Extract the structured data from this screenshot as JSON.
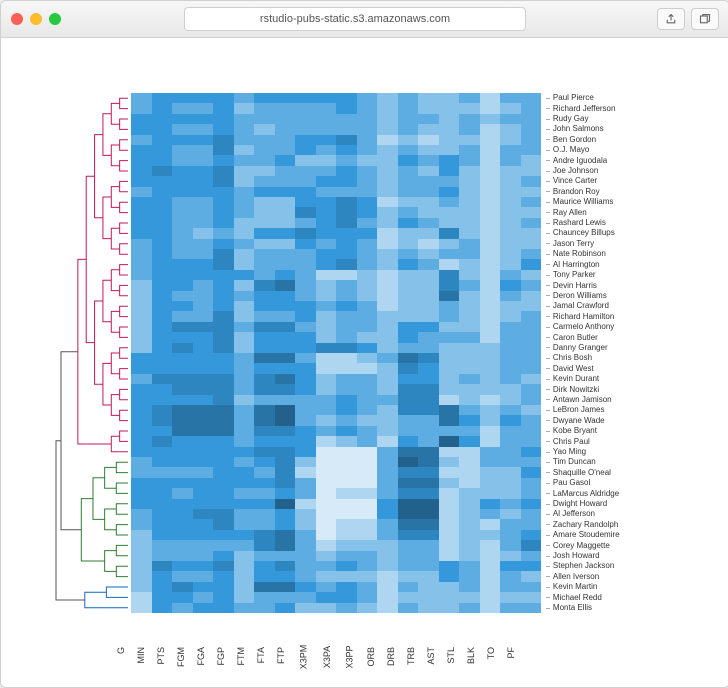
{
  "window": {
    "url": "rstudio-pubs-static.s3.amazonaws.com",
    "traffic_colors": {
      "close": "#ff5f57",
      "min": "#febc2e",
      "max": "#28c840"
    }
  },
  "heatmap": {
    "type": "heatmap",
    "background_color": "#ffffff",
    "row_labels": [
      "Paul Pierce",
      "Richard Jefferson",
      "Rudy Gay",
      "John Salmons",
      "Ben Gordon",
      "O.J. Mayo",
      "Andre Iguodala",
      "Joe Johnson",
      "Vince Carter",
      "Brandon Roy",
      "Maurice Williams",
      "Ray Allen",
      "Rashard Lewis",
      "Chauncey Billups",
      "Jason Terry",
      "Nate Robinson",
      "Al Harrington",
      "Tony Parker",
      "Devin Harris",
      "Deron Williams",
      "Jamal Crawford",
      "Richard Hamilton",
      "Carmelo Anthony",
      "Caron Butler",
      "Danny Granger",
      "Chris Bosh",
      "David West",
      "Kevin Durant",
      "Dirk Nowitzki",
      "Antawn Jamison",
      "LeBron James",
      "Dwyane Wade",
      "Kobe Bryant",
      "Chris Paul",
      "Yao Ming",
      "Tim Duncan",
      "Shaquille O'neal",
      "Pau Gasol",
      "LaMarcus Aldridge",
      "Dwight Howard",
      "Al Jefferson",
      "Zachary Randolph",
      "Amare Stoudemire",
      "Corey Maggette",
      "Josh Howard",
      "Stephen Jackson",
      "Allen Iverson",
      "Kevin Martin",
      "Michael Redd",
      "Monta Ellis"
    ],
    "col_labels": [
      "G",
      "MIN",
      "PTS",
      "FGM",
      "FGA",
      "FGP",
      "FTM",
      "FTA",
      "FTP",
      "X3PM",
      "X3PA",
      "X3PP",
      "ORB",
      "DRB",
      "TRB",
      "AST",
      "STL",
      "BLK",
      "TO",
      "PF"
    ],
    "color_scale": [
      "#d6eaf8",
      "#aed6f1",
      "#85c1e9",
      "#5dade2",
      "#3498db",
      "#2e86c1",
      "#2874a6",
      "#21618c"
    ],
    "dendrogram_colors": {
      "cluster1": "#c2185b",
      "cluster2": "#2e7d32",
      "cluster3": "#1565c0"
    },
    "row_cluster_split": [
      0,
      35,
      47,
      50
    ],
    "label_fontsize_row": 8,
    "label_fontsize_col": 9,
    "values": [
      [
        3,
        4,
        4,
        4,
        4,
        3,
        4,
        4,
        4,
        4,
        4,
        3,
        2,
        3,
        2,
        2,
        3,
        1,
        3,
        3
      ],
      [
        3,
        4,
        3,
        3,
        4,
        2,
        3,
        3,
        3,
        3,
        4,
        3,
        2,
        3,
        2,
        2,
        2,
        1,
        2,
        3
      ],
      [
        4,
        4,
        4,
        4,
        4,
        3,
        3,
        3,
        3,
        3,
        3,
        3,
        2,
        3,
        3,
        2,
        3,
        2,
        3,
        3
      ],
      [
        4,
        4,
        3,
        3,
        4,
        3,
        2,
        3,
        3,
        3,
        3,
        3,
        2,
        3,
        2,
        2,
        3,
        1,
        2,
        3
      ],
      [
        3,
        4,
        4,
        4,
        5,
        3,
        3,
        3,
        4,
        4,
        5,
        3,
        1,
        2,
        1,
        2,
        2,
        1,
        2,
        3
      ],
      [
        4,
        4,
        3,
        3,
        5,
        2,
        3,
        3,
        4,
        3,
        4,
        3,
        2,
        3,
        2,
        2,
        3,
        1,
        3,
        3
      ],
      [
        4,
        4,
        3,
        3,
        4,
        3,
        3,
        4,
        2,
        2,
        3,
        2,
        2,
        4,
        3,
        4,
        3,
        1,
        3,
        2
      ],
      [
        4,
        5,
        4,
        4,
        5,
        2,
        2,
        3,
        3,
        3,
        4,
        3,
        2,
        3,
        2,
        4,
        2,
        1,
        2,
        2
      ],
      [
        4,
        4,
        4,
        4,
        5,
        2,
        3,
        3,
        3,
        4,
        4,
        3,
        2,
        3,
        3,
        3,
        2,
        1,
        2,
        3
      ],
      [
        3,
        4,
        4,
        4,
        4,
        3,
        4,
        4,
        4,
        3,
        3,
        3,
        2,
        3,
        3,
        4,
        2,
        1,
        2,
        2
      ],
      [
        4,
        4,
        3,
        3,
        4,
        3,
        2,
        2,
        4,
        4,
        5,
        4,
        1,
        2,
        2,
        3,
        2,
        1,
        2,
        3
      ],
      [
        4,
        4,
        3,
        3,
        4,
        3,
        2,
        2,
        5,
        4,
        5,
        4,
        2,
        3,
        2,
        2,
        2,
        1,
        2,
        2
      ],
      [
        4,
        4,
        3,
        3,
        4,
        2,
        2,
        2,
        3,
        4,
        5,
        3,
        2,
        4,
        3,
        2,
        2,
        1,
        2,
        3
      ],
      [
        4,
        4,
        3,
        2,
        3,
        2,
        4,
        4,
        5,
        4,
        4,
        4,
        1,
        2,
        2,
        5,
        2,
        1,
        2,
        2
      ],
      [
        3,
        4,
        3,
        3,
        4,
        3,
        2,
        2,
        4,
        3,
        4,
        3,
        1,
        2,
        1,
        2,
        3,
        1,
        2,
        2
      ],
      [
        3,
        4,
        3,
        3,
        5,
        2,
        3,
        3,
        3,
        4,
        4,
        3,
        2,
        3,
        2,
        3,
        3,
        1,
        2,
        3
      ],
      [
        3,
        4,
        4,
        4,
        5,
        2,
        3,
        3,
        3,
        4,
        5,
        3,
        2,
        4,
        3,
        1,
        2,
        1,
        2,
        4
      ],
      [
        3,
        4,
        4,
        4,
        4,
        4,
        3,
        4,
        3,
        1,
        1,
        2,
        1,
        2,
        2,
        5,
        2,
        1,
        3,
        2
      ],
      [
        2,
        4,
        4,
        3,
        4,
        2,
        5,
        6,
        3,
        2,
        3,
        2,
        1,
        2,
        2,
        5,
        3,
        1,
        4,
        3
      ],
      [
        2,
        4,
        3,
        3,
        4,
        3,
        4,
        4,
        3,
        2,
        3,
        2,
        1,
        2,
        2,
        6,
        2,
        1,
        3,
        2
      ],
      [
        2,
        4,
        4,
        3,
        4,
        2,
        4,
        4,
        4,
        3,
        4,
        3,
        1,
        2,
        2,
        3,
        2,
        1,
        2,
        2
      ],
      [
        2,
        4,
        3,
        3,
        5,
        2,
        3,
        3,
        4,
        2,
        3,
        3,
        2,
        2,
        2,
        3,
        2,
        1,
        2,
        3
      ],
      [
        2,
        4,
        5,
        5,
        5,
        3,
        5,
        5,
        3,
        2,
        3,
        3,
        2,
        4,
        4,
        2,
        2,
        1,
        3,
        3
      ],
      [
        2,
        4,
        4,
        4,
        5,
        2,
        4,
        4,
        4,
        2,
        3,
        2,
        2,
        4,
        3,
        3,
        3,
        1,
        3,
        3
      ],
      [
        2,
        4,
        5,
        4,
        5,
        2,
        4,
        4,
        4,
        5,
        5,
        4,
        2,
        3,
        3,
        2,
        2,
        2,
        3,
        3
      ],
      [
        4,
        4,
        4,
        4,
        4,
        3,
        6,
        6,
        3,
        1,
        1,
        2,
        3,
        6,
        5,
        2,
        2,
        2,
        3,
        3
      ],
      [
        4,
        4,
        4,
        4,
        4,
        3,
        4,
        4,
        4,
        1,
        1,
        1,
        2,
        5,
        4,
        2,
        2,
        2,
        3,
        3
      ],
      [
        3,
        5,
        5,
        5,
        5,
        3,
        5,
        6,
        4,
        2,
        3,
        3,
        2,
        4,
        4,
        2,
        3,
        2,
        3,
        2
      ],
      [
        4,
        4,
        5,
        5,
        5,
        3,
        5,
        5,
        4,
        2,
        3,
        3,
        2,
        5,
        5,
        2,
        2,
        2,
        2,
        3
      ],
      [
        4,
        4,
        4,
        4,
        5,
        2,
        3,
        3,
        3,
        3,
        4,
        3,
        3,
        5,
        5,
        1,
        2,
        1,
        2,
        3
      ],
      [
        4,
        5,
        6,
        6,
        6,
        3,
        6,
        7,
        3,
        3,
        4,
        3,
        2,
        5,
        5,
        6,
        3,
        2,
        3,
        2
      ],
      [
        4,
        5,
        6,
        6,
        6,
        3,
        6,
        7,
        3,
        2,
        3,
        2,
        2,
        3,
        3,
        6,
        4,
        2,
        4,
        3
      ],
      [
        4,
        4,
        6,
        6,
        6,
        3,
        5,
        5,
        4,
        3,
        4,
        3,
        2,
        3,
        3,
        3,
        3,
        1,
        3,
        3
      ],
      [
        4,
        5,
        4,
        4,
        4,
        3,
        4,
        4,
        4,
        1,
        2,
        3,
        1,
        4,
        3,
        7,
        4,
        1,
        3,
        3
      ],
      [
        4,
        4,
        4,
        4,
        4,
        4,
        5,
        5,
        4,
        0,
        0,
        0,
        3,
        6,
        6,
        1,
        1,
        3,
        3,
        4
      ],
      [
        3,
        4,
        4,
        4,
        4,
        3,
        4,
        5,
        2,
        0,
        0,
        0,
        3,
        7,
        6,
        2,
        1,
        3,
        3,
        3
      ],
      [
        3,
        3,
        3,
        3,
        4,
        4,
        3,
        5,
        1,
        0,
        0,
        0,
        3,
        5,
        5,
        1,
        1,
        2,
        2,
        4
      ],
      [
        4,
        4,
        4,
        4,
        4,
        4,
        4,
        5,
        3,
        0,
        0,
        0,
        3,
        6,
        6,
        2,
        1,
        2,
        2,
        3
      ],
      [
        4,
        4,
        3,
        4,
        4,
        3,
        3,
        4,
        3,
        0,
        1,
        1,
        3,
        5,
        5,
        1,
        2,
        2,
        2,
        3
      ],
      [
        4,
        4,
        4,
        4,
        4,
        4,
        4,
        7,
        1,
        0,
        0,
        0,
        4,
        7,
        7,
        1,
        2,
        4,
        3,
        4
      ],
      [
        3,
        4,
        4,
        5,
        5,
        3,
        3,
        4,
        2,
        0,
        0,
        0,
        4,
        7,
        7,
        1,
        2,
        3,
        2,
        3
      ],
      [
        3,
        4,
        4,
        4,
        5,
        3,
        3,
        4,
        2,
        0,
        1,
        1,
        3,
        6,
        6,
        1,
        2,
        1,
        3,
        3
      ],
      [
        2,
        4,
        4,
        4,
        4,
        4,
        5,
        6,
        3,
        0,
        1,
        1,
        3,
        5,
        5,
        1,
        2,
        2,
        3,
        4
      ],
      [
        2,
        3,
        3,
        3,
        3,
        3,
        5,
        6,
        3,
        1,
        2,
        2,
        2,
        3,
        3,
        1,
        2,
        1,
        3,
        5
      ],
      [
        2,
        3,
        3,
        3,
        4,
        2,
        3,
        3,
        3,
        2,
        3,
        3,
        2,
        3,
        3,
        1,
        2,
        1,
        2,
        3
      ],
      [
        2,
        5,
        4,
        4,
        5,
        2,
        4,
        5,
        3,
        3,
        4,
        3,
        2,
        3,
        3,
        4,
        3,
        1,
        4,
        4
      ],
      [
        2,
        4,
        3,
        3,
        4,
        2,
        4,
        4,
        3,
        2,
        2,
        2,
        1,
        2,
        2,
        4,
        3,
        1,
        3,
        2
      ],
      [
        2,
        4,
        5,
        4,
        4,
        2,
        6,
        6,
        4,
        3,
        4,
        3,
        1,
        3,
        2,
        2,
        3,
        1,
        3,
        3
      ],
      [
        1,
        4,
        4,
        3,
        4,
        2,
        3,
        3,
        3,
        4,
        4,
        3,
        1,
        2,
        2,
        2,
        2,
        1,
        2,
        2
      ],
      [
        1,
        4,
        3,
        4,
        4,
        3,
        3,
        4,
        2,
        2,
        3,
        2,
        1,
        3,
        2,
        2,
        3,
        1,
        3,
        3
      ]
    ]
  }
}
